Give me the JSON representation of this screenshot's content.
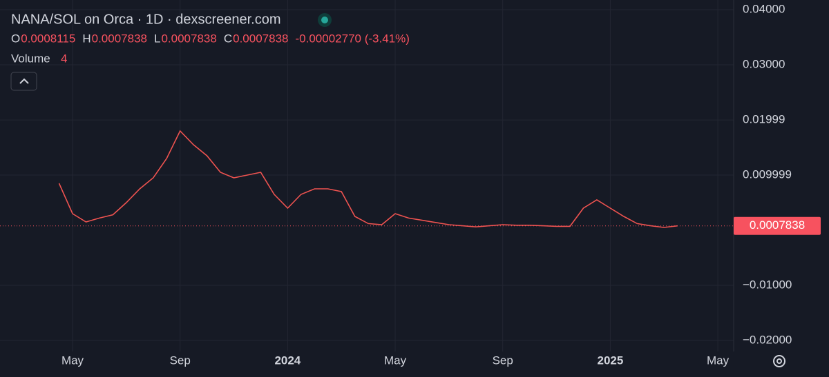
{
  "chart_data": {
    "type": "line",
    "title": "NANA/SOL on Orca · 1D · dexscreener.com",
    "ohlc": [
      {
        "label": "O",
        "value": 0.0008115
      },
      {
        "label": "H",
        "value": 0.0007838
      },
      {
        "label": "L",
        "value": 0.0007838
      },
      {
        "label": "C",
        "value": 0.0007838
      }
    ],
    "change": "-0.00002770 (-3.41%)",
    "volume_label": "Volume",
    "volume": 4,
    "last_price": 0.0007838,
    "categories": [
      null,
      "May",
      null,
      null,
      null,
      null,
      null,
      null,
      null,
      "Sep",
      null,
      null,
      null,
      null,
      null,
      null,
      null,
      "2024",
      null,
      null,
      null,
      null,
      null,
      null,
      null,
      "May",
      null,
      null,
      null,
      null,
      null,
      null,
      null,
      "Sep",
      null,
      null,
      null,
      null,
      null,
      null,
      null,
      "2025",
      null,
      null,
      null,
      null,
      null,
      null,
      null,
      "May"
    ],
    "series": [
      {
        "name": "NANA/SOL",
        "color": "#ef5350",
        "values": [
          0.0085,
          0.003,
          0.0015,
          0.0022,
          0.0028,
          0.005,
          0.0075,
          0.0095,
          0.013,
          0.018,
          0.0155,
          0.0135,
          0.0105,
          0.0095,
          0.01,
          0.0105,
          0.0065,
          0.004,
          0.0065,
          0.0075,
          0.0075,
          0.007,
          0.0025,
          0.0012,
          0.001,
          0.003,
          0.0022,
          0.0018,
          0.0014,
          0.001,
          0.0008,
          0.0006,
          0.0008,
          0.001,
          0.0009,
          0.0009,
          0.0008,
          0.0007,
          0.0007,
          0.004,
          0.0055,
          0.004,
          0.0025,
          0.0012,
          0.0008,
          0.0005,
          0.0007838,
          null,
          null,
          null
        ]
      }
    ],
    "ylim": [
      -0.022,
      0.04175
    ],
    "yticks": [
      {
        "value": 0.04,
        "label": "0.04000"
      },
      {
        "value": 0.03,
        "label": "0.03000"
      },
      0.01999,
      0.009999,
      {
        "value": -0.01,
        "label": "−0.01000"
      },
      {
        "value": -0.02,
        "label": "−0.02000"
      }
    ],
    "grid": true
  }
}
